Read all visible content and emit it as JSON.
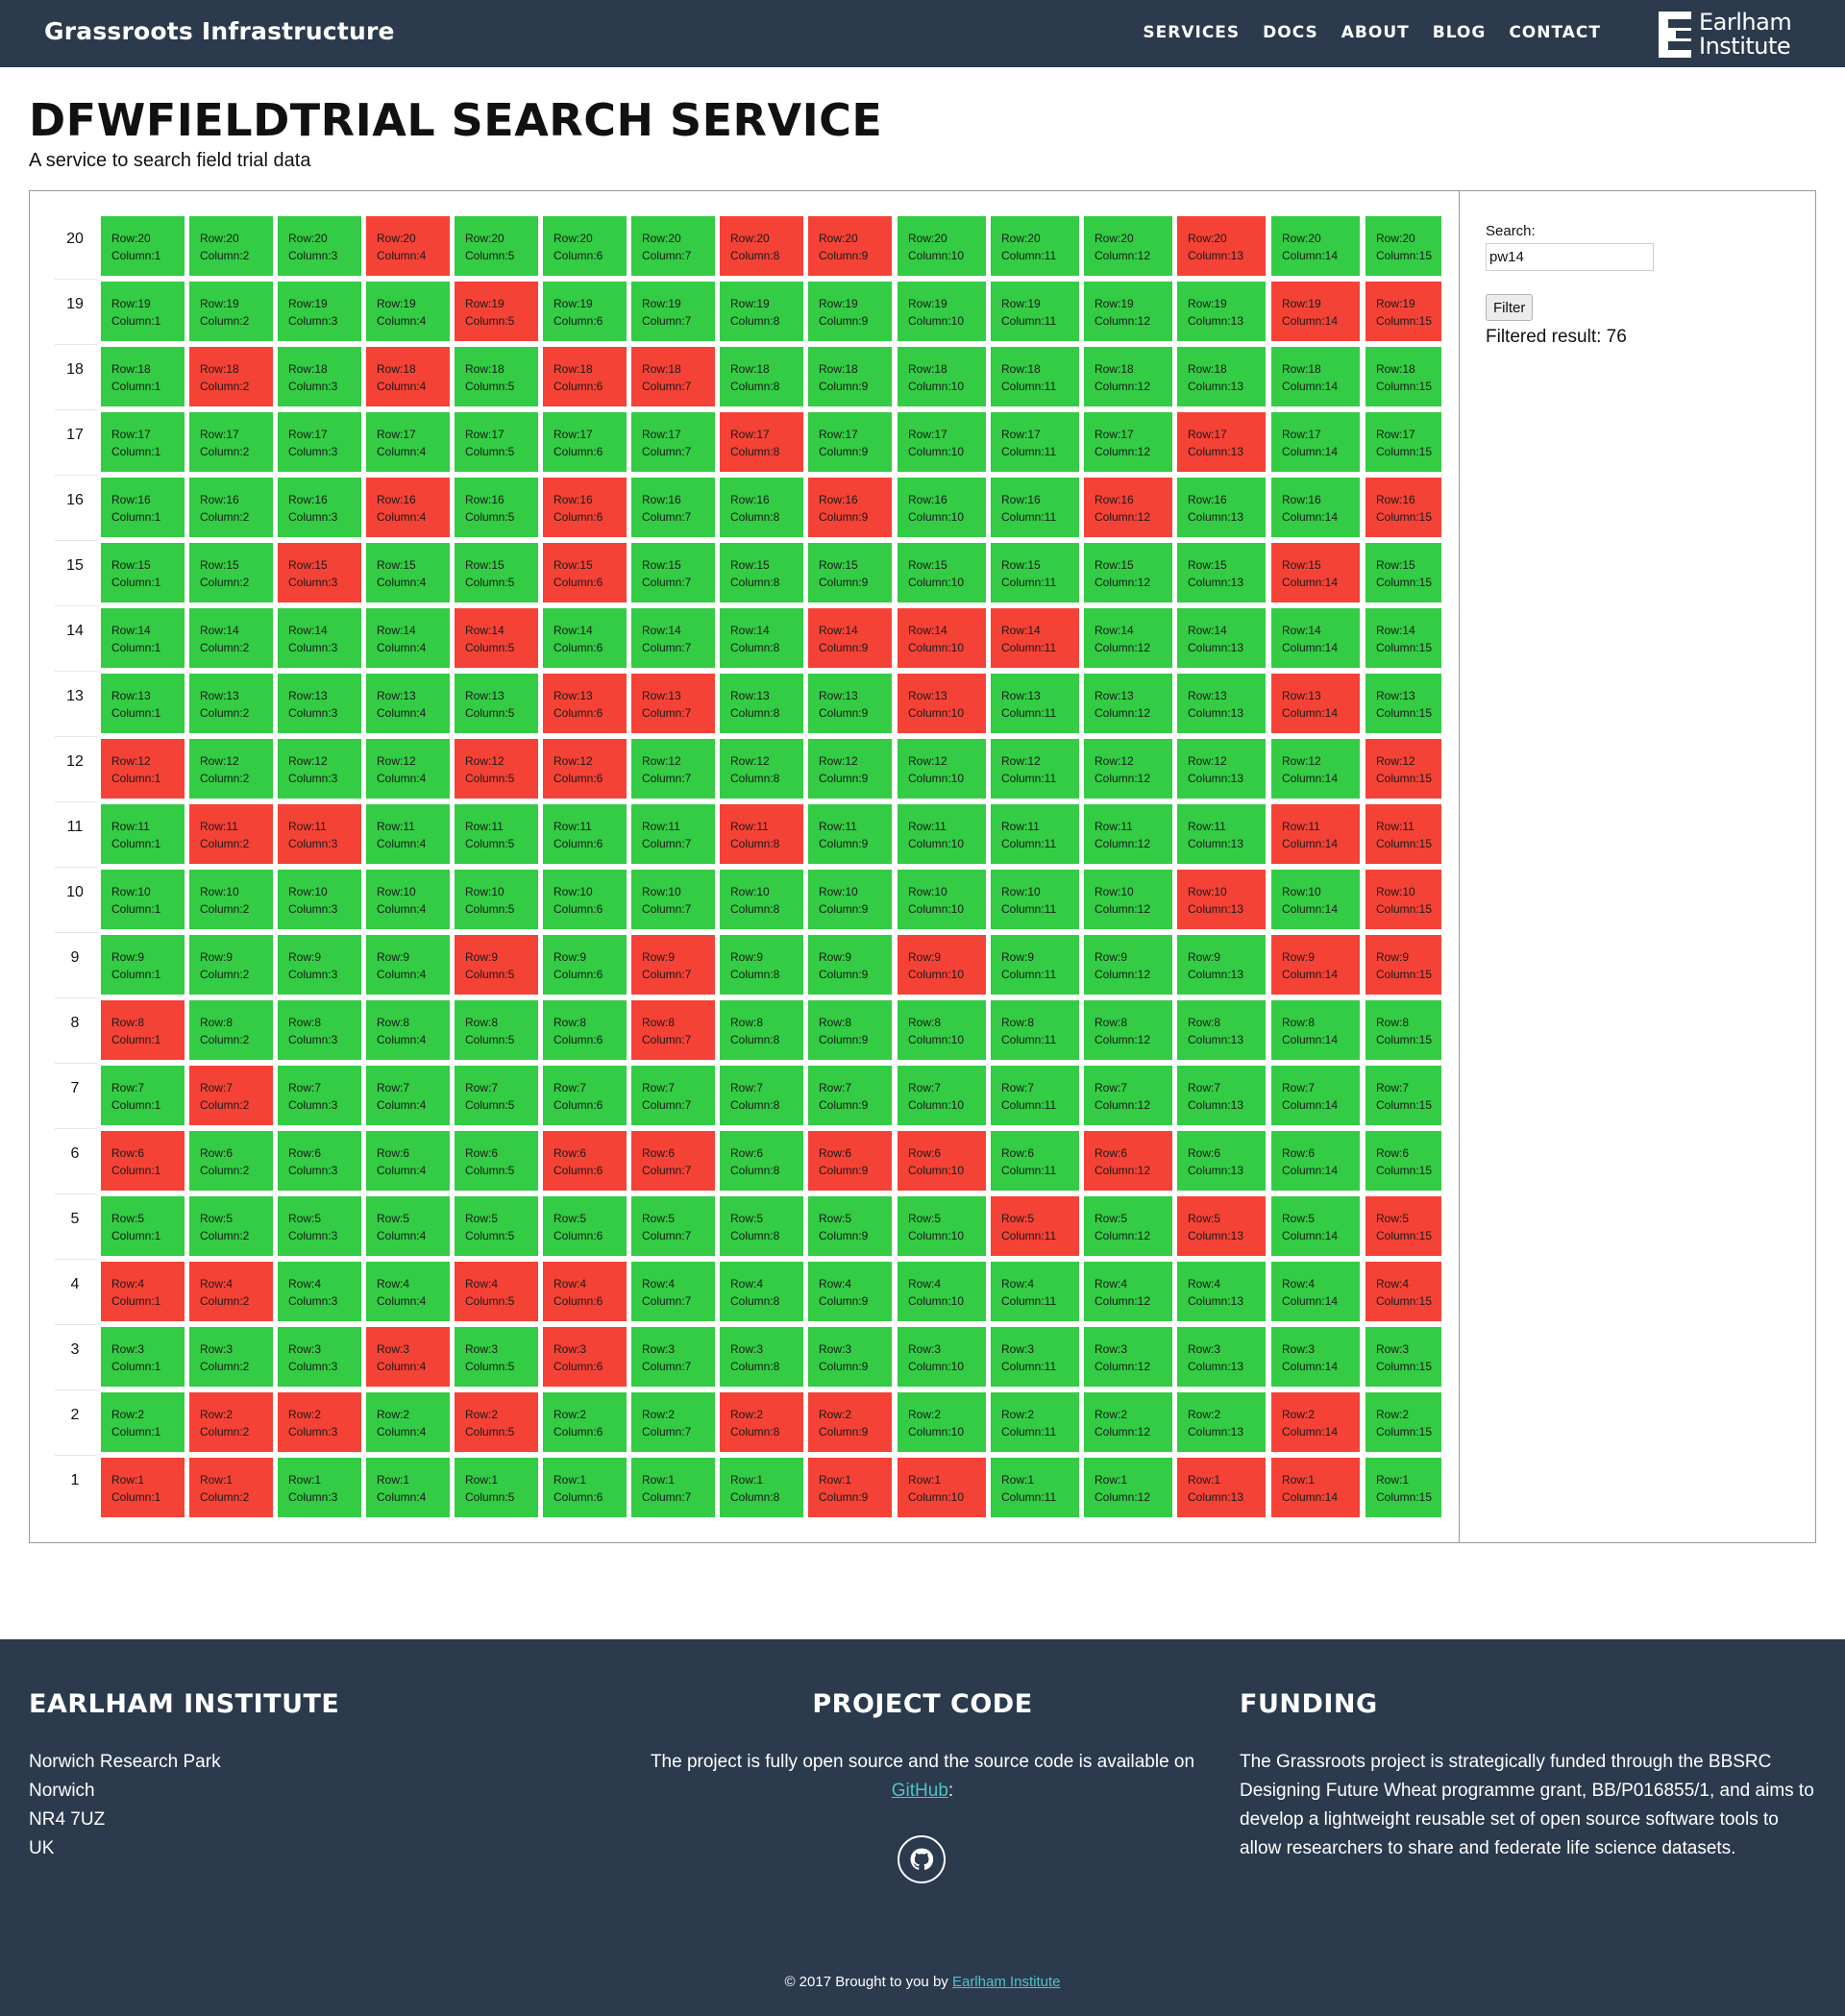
{
  "nav": {
    "brand": "Grassroots Infrastructure",
    "links": [
      "SERVICES",
      "DOCS",
      "ABOUT",
      "BLOG",
      "CONTACT"
    ],
    "logo_line1": "Earlham",
    "logo_line2": "Institute"
  },
  "page": {
    "title": "DFWFIELDTRIAL SEARCH SERVICE",
    "subtitle": "A service to search field trial data"
  },
  "grid": {
    "row_prefix": "Row:",
    "column_prefix": "Column:",
    "rows": [
      {
        "row": 20,
        "highlighted_columns": [
          4,
          8,
          9,
          13
        ]
      },
      {
        "row": 19,
        "highlighted_columns": [
          5,
          14,
          15
        ]
      },
      {
        "row": 18,
        "highlighted_columns": [
          2,
          4,
          6,
          7
        ]
      },
      {
        "row": 17,
        "highlighted_columns": [
          8,
          13
        ]
      },
      {
        "row": 16,
        "highlighted_columns": [
          4,
          6,
          9,
          12,
          15
        ]
      },
      {
        "row": 15,
        "highlighted_columns": [
          3,
          6,
          14
        ]
      },
      {
        "row": 14,
        "highlighted_columns": [
          5,
          9,
          10,
          11
        ]
      },
      {
        "row": 13,
        "highlighted_columns": [
          6,
          7,
          10,
          14
        ]
      },
      {
        "row": 12,
        "highlighted_columns": [
          1,
          5,
          6,
          15
        ]
      },
      {
        "row": 11,
        "highlighted_columns": [
          2,
          3,
          8,
          14,
          15
        ]
      },
      {
        "row": 10,
        "highlighted_columns": [
          13,
          15
        ]
      },
      {
        "row": 9,
        "highlighted_columns": [
          5,
          7,
          10,
          14,
          15
        ]
      },
      {
        "row": 8,
        "highlighted_columns": [
          1,
          7
        ]
      },
      {
        "row": 7,
        "highlighted_columns": [
          2
        ]
      },
      {
        "row": 6,
        "highlighted_columns": [
          1,
          6,
          7,
          9,
          10,
          12
        ]
      },
      {
        "row": 5,
        "highlighted_columns": [
          11,
          13,
          15
        ]
      },
      {
        "row": 4,
        "highlighted_columns": [
          1,
          2,
          5,
          6,
          15
        ]
      },
      {
        "row": 3,
        "highlighted_columns": [
          4,
          6
        ]
      },
      {
        "row": 2,
        "highlighted_columns": [
          2,
          3,
          5,
          8,
          9,
          14
        ]
      },
      {
        "row": 1,
        "highlighted_columns": [
          1,
          2,
          9,
          10,
          13,
          14
        ]
      }
    ],
    "columns": 15,
    "colors": {
      "match": "#f54236",
      "other": "#33cc44"
    }
  },
  "search": {
    "label": "Search:",
    "value": "pw14",
    "button": "Filter",
    "result_label": "Filtered result: 76"
  },
  "footer": {
    "col1_title": "EARLHAM INSTITUTE",
    "address": [
      "Norwich Research Park",
      "Norwich",
      "NR4 7UZ",
      "UK"
    ],
    "col2_title": "PROJECT CODE",
    "col2_text": "The project is fully open source and the source code is available on",
    "col2_link": "GitHub",
    "col2_after": ":",
    "github_icon": "github-icon",
    "col3_title": "FUNDING",
    "col3_text": "The Grassroots project is strategically funded through the BBSRC Designing Future Wheat programme grant, BB/P016855/1, and aims to develop a lightweight reusable set of open source software tools to allow researchers to share and federate life science datasets.",
    "copyright_prefix": "© 2017 Brought to you by",
    "copyright_link": "Earlham Institute"
  }
}
